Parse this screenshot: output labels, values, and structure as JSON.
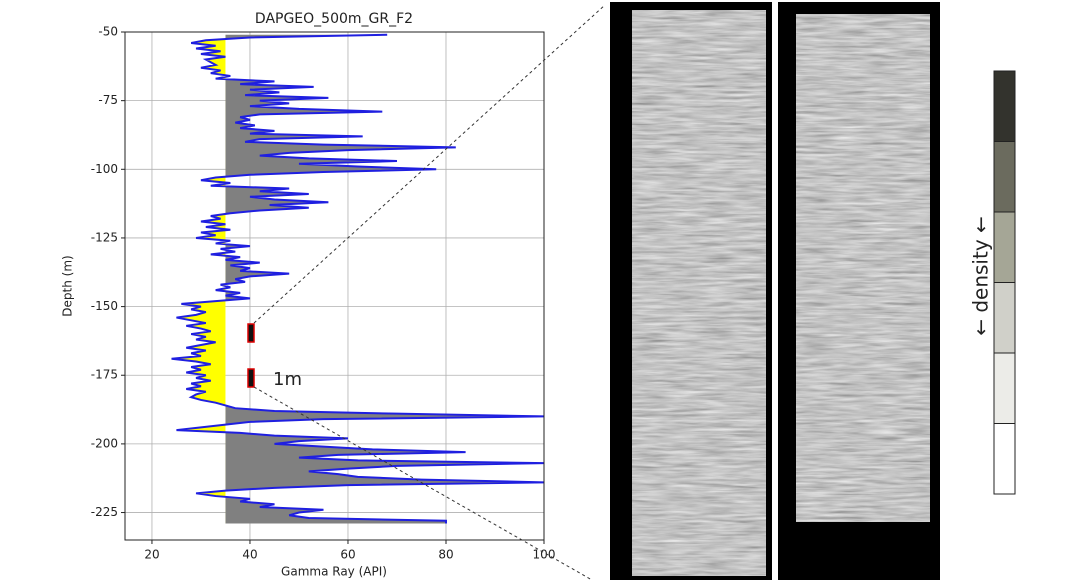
{
  "chart_data": {
    "type": "line",
    "title": "DAPGEO_500m_GR_F2",
    "x_label": "Gamma Ray (API)",
    "y_label": "Depth (m)",
    "xlim": [
      14.5,
      100
    ],
    "xticks": [
      20,
      40,
      60,
      80,
      100
    ],
    "ylim": [
      -235,
      -50
    ],
    "yticks": [
      -50,
      -75,
      -100,
      -125,
      -150,
      -175,
      -200,
      -225
    ],
    "grid": true,
    "fill_baseline": 35,
    "fill_colors": {
      "above": "#808080",
      "below": "#ffff00"
    },
    "annotations": [
      "1m"
    ],
    "y": [
      -51,
      -52,
      -53,
      -54,
      -55,
      -56,
      -57,
      -58,
      -59,
      -60,
      -61,
      -62,
      -63,
      -64,
      -65,
      -66,
      -67,
      -68,
      -69,
      -70,
      -71,
      -72,
      -73,
      -74,
      -75,
      -76,
      -77,
      -78,
      -79,
      -80,
      -81,
      -82,
      -83,
      -84,
      -85,
      -86,
      -87,
      -88,
      -89,
      -90,
      -91,
      -92,
      -93,
      -94,
      -95,
      -96,
      -97,
      -98,
      -99,
      -100,
      -101,
      -102,
      -103,
      -104,
      -105,
      -106,
      -107,
      -108,
      -109,
      -110,
      -111,
      -112,
      -113,
      -114,
      -115,
      -116,
      -117,
      -118,
      -119,
      -120,
      -121,
      -122,
      -123,
      -124,
      -125,
      -126,
      -127,
      -128,
      -129,
      -130,
      -131,
      -132,
      -133,
      -134,
      -135,
      -136,
      -137,
      -138,
      -139,
      -140,
      -141,
      -142,
      -143,
      -144,
      -145,
      -146,
      -147,
      -148,
      -149,
      -150,
      -151,
      -152,
      -153,
      -154,
      -155,
      -156,
      -157,
      -158,
      -159,
      -160,
      -161,
      -162,
      -163,
      -164,
      -165,
      -166,
      -167,
      -168,
      -169,
      -170,
      -171,
      -172,
      -173,
      -174,
      -175,
      -176,
      -177,
      -178,
      -179,
      -180,
      -181,
      -182,
      -183,
      -184,
      -185,
      -186,
      -187,
      -188,
      -189,
      -190,
      -191,
      -192,
      -193,
      -194,
      -195,
      -196,
      -197,
      -198,
      -199,
      -200,
      -201,
      -202,
      -203,
      -204,
      -205,
      -206,
      -207,
      -208,
      -209,
      -210,
      -211,
      -212,
      -213,
      -214,
      -215,
      -216,
      -217,
      -218,
      -219,
      -220,
      -221,
      -222,
      -223,
      -224,
      -225,
      -226,
      -227,
      -228,
      -229
    ],
    "series": [
      {
        "color": "#1f1fe0",
        "values": [
          68,
          40,
          31,
          28,
          33,
          29,
          34,
          30,
          35,
          31,
          32,
          33,
          30,
          34,
          32,
          36,
          33,
          45,
          38,
          53,
          40,
          46,
          39,
          56,
          42,
          48,
          40,
          50,
          67,
          42,
          38,
          40,
          37,
          41,
          38,
          45,
          40,
          63,
          42,
          39,
          55,
          82,
          60,
          48,
          42,
          52,
          70,
          50,
          62,
          78,
          55,
          40,
          33,
          30,
          36,
          32,
          48,
          42,
          52,
          40,
          45,
          56,
          44,
          52,
          42,
          36,
          32,
          34,
          30,
          35,
          31,
          36,
          30,
          33,
          29,
          36,
          33,
          40,
          34,
          37,
          32,
          38,
          35,
          42,
          36,
          40,
          38,
          48,
          40,
          37,
          39,
          34,
          36,
          33,
          38,
          35,
          40,
          33,
          26,
          30,
          28,
          31,
          29,
          25,
          28,
          31,
          27,
          30,
          32,
          28,
          31,
          29,
          33,
          30,
          27,
          31,
          28,
          30,
          24,
          29,
          32,
          28,
          30,
          27,
          31,
          29,
          32,
          28,
          30,
          27,
          31,
          29,
          28,
          30,
          33,
          35,
          37,
          45,
          70,
          100,
          55,
          40,
          35,
          30,
          25,
          38,
          45,
          60,
          50,
          45,
          55,
          65,
          84,
          58,
          50,
          62,
          100,
          70,
          60,
          52,
          58,
          62,
          75,
          100,
          60,
          45,
          35,
          29,
          33,
          40,
          38,
          45,
          42,
          55,
          50,
          48,
          52,
          80,
          80
        ]
      }
    ]
  },
  "density_scale": {
    "label": "← density ←",
    "colors": [
      "#33332d",
      "#6b6b5e",
      "#a5a696",
      "#d0d0c9",
      "#ececE8",
      "#ffffff"
    ]
  }
}
